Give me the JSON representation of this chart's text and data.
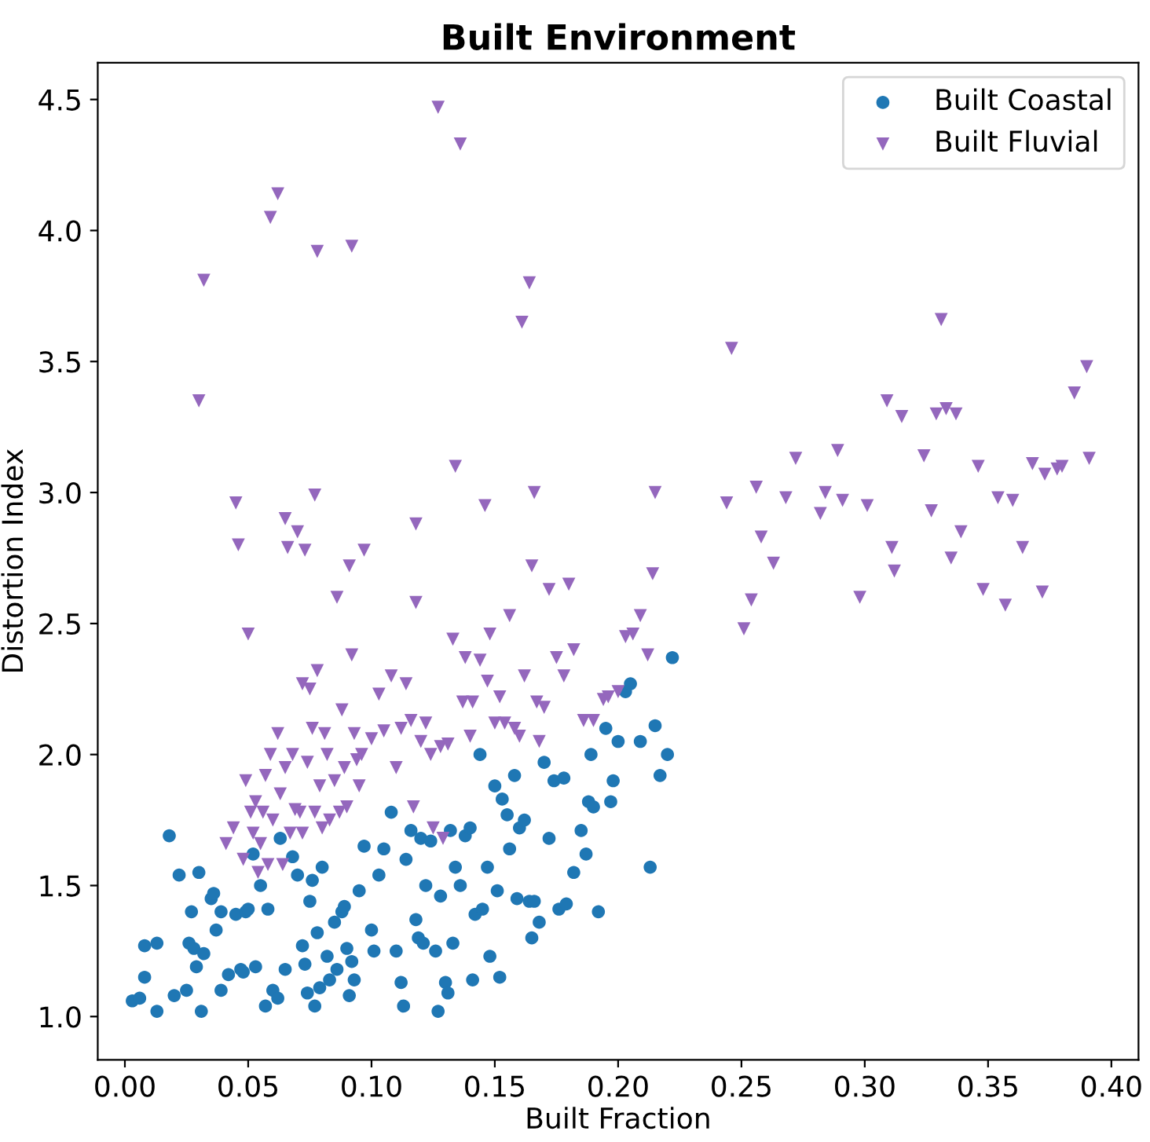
{
  "chart_data": {
    "type": "scatter",
    "title": "Built Environment",
    "xlabel": "Built Fraction",
    "ylabel": "Distortion Index",
    "xlim": [
      -0.011,
      0.411
    ],
    "ylim": [
      0.835,
      4.64
    ],
    "xticks": [
      {
        "value": 0,
        "label": "0.00"
      },
      {
        "value": 0.05,
        "label": "0.05"
      },
      {
        "value": 0.1,
        "label": "0.10"
      },
      {
        "value": 0.15,
        "label": "0.15"
      },
      {
        "value": 0.2,
        "label": "0.20"
      },
      {
        "value": 0.25,
        "label": "0.25"
      },
      {
        "value": 0.3,
        "label": "0.30"
      },
      {
        "value": 0.35,
        "label": "0.35"
      },
      {
        "value": 0.4,
        "label": "0.40"
      }
    ],
    "yticks": [
      {
        "value": 1,
        "label": "1.0"
      },
      {
        "value": 1.5,
        "label": "1.5"
      },
      {
        "value": 2,
        "label": "2.0"
      },
      {
        "value": 2.5,
        "label": "2.5"
      },
      {
        "value": 3,
        "label": "3.0"
      },
      {
        "value": 3.5,
        "label": "3.5"
      },
      {
        "value": 4,
        "label": "4.0"
      },
      {
        "value": 4.5,
        "label": "4.5"
      }
    ],
    "grid": false,
    "legend": "top right",
    "series": [
      {
        "name": "Built Coastal",
        "color": "#1f77b4",
        "marker": "circle",
        "x": [
          0.003,
          0.006,
          0.008,
          0.008,
          0.013,
          0.013,
          0.018,
          0.02,
          0.022,
          0.025,
          0.026,
          0.027,
          0.028,
          0.029,
          0.03,
          0.031,
          0.032,
          0.035,
          0.036,
          0.037,
          0.039,
          0.039,
          0.042,
          0.045,
          0.047,
          0.048,
          0.049,
          0.05,
          0.052,
          0.053,
          0.055,
          0.057,
          0.058,
          0.06,
          0.062,
          0.063,
          0.065,
          0.068,
          0.07,
          0.072,
          0.073,
          0.074,
          0.075,
          0.076,
          0.077,
          0.078,
          0.079,
          0.08,
          0.082,
          0.083,
          0.085,
          0.086,
          0.088,
          0.089,
          0.09,
          0.091,
          0.092,
          0.093,
          0.095,
          0.097,
          0.1,
          0.101,
          0.103,
          0.105,
          0.108,
          0.11,
          0.112,
          0.113,
          0.114,
          0.116,
          0.118,
          0.119,
          0.12,
          0.121,
          0.122,
          0.124,
          0.126,
          0.127,
          0.128,
          0.13,
          0.131,
          0.132,
          0.133,
          0.134,
          0.136,
          0.138,
          0.14,
          0.141,
          0.142,
          0.144,
          0.145,
          0.147,
          0.148,
          0.15,
          0.151,
          0.152,
          0.153,
          0.155,
          0.156,
          0.158,
          0.159,
          0.16,
          0.162,
          0.164,
          0.165,
          0.166,
          0.168,
          0.17,
          0.172,
          0.174,
          0.176,
          0.178,
          0.179,
          0.182,
          0.185,
          0.187,
          0.188,
          0.189,
          0.19,
          0.192,
          0.195,
          0.197,
          0.198,
          0.2,
          0.203,
          0.205,
          0.209,
          0.213,
          0.215,
          0.217,
          0.22,
          0.222
        ],
        "values": [
          1.06,
          1.07,
          1.15,
          1.27,
          1.28,
          1.02,
          1.69,
          1.08,
          1.54,
          1.1,
          1.28,
          1.4,
          1.26,
          1.19,
          1.55,
          1.02,
          1.24,
          1.45,
          1.47,
          1.33,
          1.4,
          1.1,
          1.16,
          1.39,
          1.18,
          1.17,
          1.4,
          1.41,
          1.62,
          1.19,
          1.5,
          1.04,
          1.41,
          1.1,
          1.07,
          1.68,
          1.18,
          1.61,
          1.54,
          1.27,
          1.2,
          1.09,
          1.44,
          1.52,
          1.04,
          1.32,
          1.11,
          1.57,
          1.23,
          1.14,
          1.36,
          1.18,
          1.4,
          1.42,
          1.26,
          1.08,
          1.21,
          1.14,
          1.48,
          1.65,
          1.33,
          1.25,
          1.54,
          1.64,
          1.78,
          1.25,
          1.13,
          1.04,
          1.6,
          1.71,
          1.37,
          1.3,
          1.68,
          1.28,
          1.5,
          1.67,
          1.25,
          1.02,
          1.46,
          1.13,
          1.09,
          1.71,
          1.28,
          1.57,
          1.5,
          1.69,
          1.72,
          1.14,
          1.39,
          2.0,
          1.41,
          1.57,
          1.23,
          1.88,
          1.48,
          1.15,
          1.83,
          1.77,
          1.64,
          1.92,
          1.45,
          1.72,
          1.75,
          1.44,
          1.3,
          1.44,
          1.36,
          1.97,
          1.68,
          1.9,
          1.41,
          1.91,
          1.43,
          1.55,
          1.71,
          1.62,
          1.82,
          2.0,
          1.8,
          1.4,
          2.1,
          1.82,
          1.9,
          2.05,
          2.24,
          2.27,
          2.05,
          1.57,
          2.11,
          1.92,
          2.0,
          2.37
        ]
      },
      {
        "name": "Built Fluvial",
        "color": "#9467bd",
        "marker": "triangle",
        "x": [
          0.03,
          0.032,
          0.041,
          0.044,
          0.045,
          0.046,
          0.048,
          0.049,
          0.05,
          0.051,
          0.052,
          0.053,
          0.054,
          0.055,
          0.056,
          0.057,
          0.058,
          0.059,
          0.059,
          0.06,
          0.062,
          0.062,
          0.063,
          0.064,
          0.065,
          0.065,
          0.066,
          0.067,
          0.068,
          0.069,
          0.07,
          0.071,
          0.072,
          0.072,
          0.073,
          0.074,
          0.075,
          0.076,
          0.077,
          0.077,
          0.078,
          0.078,
          0.079,
          0.08,
          0.081,
          0.082,
          0.083,
          0.085,
          0.086,
          0.087,
          0.088,
          0.089,
          0.09,
          0.091,
          0.092,
          0.092,
          0.093,
          0.094,
          0.095,
          0.096,
          0.097,
          0.1,
          0.103,
          0.105,
          0.108,
          0.11,
          0.112,
          0.114,
          0.116,
          0.117,
          0.118,
          0.118,
          0.12,
          0.122,
          0.124,
          0.125,
          0.127,
          0.128,
          0.129,
          0.131,
          0.133,
          0.134,
          0.136,
          0.137,
          0.138,
          0.14,
          0.141,
          0.144,
          0.146,
          0.147,
          0.148,
          0.15,
          0.152,
          0.154,
          0.156,
          0.158,
          0.16,
          0.161,
          0.162,
          0.164,
          0.165,
          0.166,
          0.167,
          0.168,
          0.17,
          0.172,
          0.175,
          0.178,
          0.18,
          0.182,
          0.186,
          0.19,
          0.194,
          0.196,
          0.2,
          0.203,
          0.206,
          0.209,
          0.212,
          0.214,
          0.215,
          0.246,
          0.244,
          0.251,
          0.254,
          0.256,
          0.258,
          0.263,
          0.268,
          0.272,
          0.282,
          0.284,
          0.289,
          0.291,
          0.298,
          0.301,
          0.309,
          0.311,
          0.312,
          0.315,
          0.324,
          0.327,
          0.329,
          0.331,
          0.333,
          0.335,
          0.337,
          0.339,
          0.346,
          0.348,
          0.354,
          0.357,
          0.36,
          0.364,
          0.368,
          0.372,
          0.373,
          0.378,
          0.38,
          0.385,
          0.39,
          0.391
        ],
        "values": [
          3.35,
          3.81,
          1.66,
          1.72,
          2.96,
          2.8,
          1.6,
          1.9,
          2.46,
          1.78,
          1.7,
          1.82,
          1.55,
          1.66,
          1.78,
          1.92,
          1.58,
          2.0,
          4.05,
          1.75,
          4.14,
          2.08,
          1.85,
          1.58,
          2.9,
          1.95,
          2.79,
          1.7,
          2.0,
          1.79,
          2.85,
          1.78,
          2.27,
          1.7,
          2.78,
          1.97,
          2.25,
          2.1,
          2.99,
          1.78,
          3.92,
          2.32,
          1.88,
          1.72,
          2.08,
          2.0,
          1.75,
          1.9,
          2.6,
          1.78,
          2.17,
          1.95,
          1.8,
          2.72,
          3.94,
          2.38,
          2.08,
          1.98,
          1.88,
          2.0,
          2.78,
          2.06,
          2.23,
          2.09,
          2.3,
          1.95,
          2.1,
          2.27,
          2.13,
          1.8,
          2.58,
          2.88,
          2.05,
          2.12,
          2.0,
          1.72,
          4.47,
          2.03,
          1.68,
          2.04,
          2.44,
          3.1,
          4.33,
          2.2,
          2.37,
          2.07,
          2.2,
          2.36,
          2.95,
          2.28,
          2.46,
          2.12,
          2.22,
          2.12,
          2.53,
          2.1,
          2.07,
          3.65,
          2.3,
          3.8,
          2.72,
          3.0,
          2.2,
          2.05,
          2.18,
          2.63,
          2.37,
          2.3,
          2.65,
          2.4,
          2.13,
          2.13,
          2.21,
          2.22,
          2.24,
          2.45,
          2.46,
          2.53,
          2.38,
          2.69,
          3.0,
          3.55,
          2.96,
          2.48,
          2.59,
          3.02,
          2.83,
          2.73,
          2.98,
          3.13,
          2.92,
          3.0,
          3.16,
          2.97,
          2.6,
          2.95,
          3.35,
          2.79,
          2.7,
          3.29,
          3.14,
          2.93,
          3.3,
          3.66,
          3.32,
          2.75,
          3.3,
          2.85,
          3.1,
          2.63,
          2.98,
          2.57,
          2.97,
          2.79,
          3.11,
          2.62,
          3.07,
          3.09,
          3.1,
          3.38,
          3.48,
          3.13
        ]
      }
    ]
  }
}
